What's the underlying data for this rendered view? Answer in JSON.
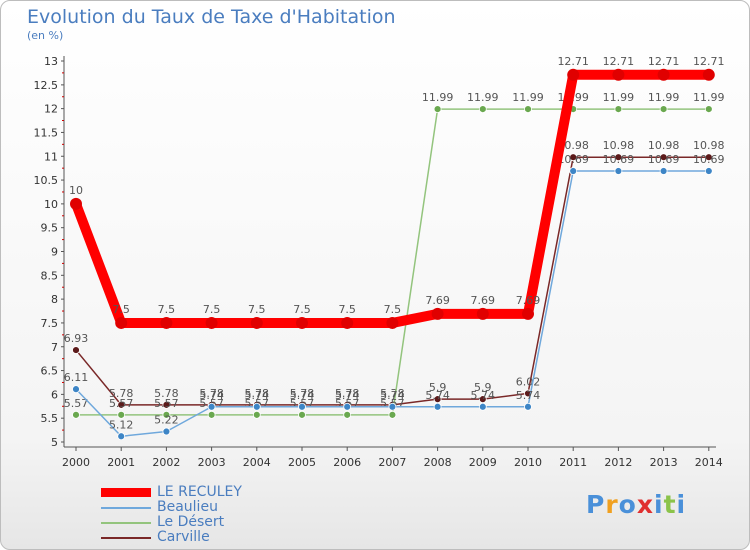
{
  "title": "Evolution du Taux de Taxe d'Habitation",
  "unit": "(en %)",
  "brand": {
    "letters": [
      "P",
      "r",
      "o",
      "x",
      "i",
      "t",
      "i"
    ],
    "colors": [
      "#4a90d9",
      "#f0a020",
      "#4a90d9",
      "#e03030",
      "#4a90d9",
      "#8bc34a",
      "#4a90d9"
    ]
  },
  "chart_data": {
    "type": "line",
    "x": [
      "2000",
      "2001",
      "2002",
      "2003",
      "2004",
      "2005",
      "2006",
      "2007",
      "2008",
      "2009",
      "2010",
      "2011",
      "2012",
      "2013",
      "2014"
    ],
    "ylim": [
      5,
      13
    ],
    "yticks": [
      "5",
      "5.5",
      "6",
      "6.5",
      "7",
      "7.5",
      "8",
      "8.5",
      "9",
      "9.5",
      "10",
      "10.5",
      "11",
      "11.5",
      "12",
      "12.5",
      "13"
    ],
    "grid": false,
    "legend_position": "bottom-left",
    "series": [
      {
        "name": "LE RECULEY",
        "color": "#ff0000",
        "marker": "#e00000",
        "values": [
          10,
          7.5,
          7.5,
          7.5,
          7.5,
          7.5,
          7.5,
          7.5,
          7.69,
          7.69,
          7.69,
          12.71,
          12.71,
          12.71,
          12.71
        ],
        "labels": [
          "10",
          "7.5",
          "7.5",
          "7.5",
          "7.5",
          "7.5",
          "7.5",
          "7.5",
          "7.69",
          "7.69",
          "7.69",
          "12.71",
          "12.71",
          "12.71",
          "12.71"
        ]
      },
      {
        "name": "Beaulieu",
        "color": "#6fa8dc",
        "marker": "#3d85c6",
        "values": [
          6.11,
          5.12,
          5.22,
          5.74,
          5.74,
          5.74,
          5.74,
          5.74,
          5.74,
          5.74,
          5.74,
          10.69,
          10.69,
          10.69,
          10.69
        ],
        "labels": [
          "6.11",
          "5.12",
          "5.22",
          "5.74",
          "5.74",
          "5.74",
          "5.74",
          "5.74",
          "5.74",
          "5.74",
          "5.74",
          "10.69",
          "10.69",
          "10.69",
          "10.69"
        ]
      },
      {
        "name": "Le Désert",
        "color": "#93c47d",
        "marker": "#6aa84f",
        "values": [
          5.57,
          5.57,
          5.57,
          5.57,
          5.57,
          5.57,
          5.57,
          5.57,
          11.99,
          11.99,
          11.99,
          11.99,
          11.99,
          11.99,
          11.99
        ],
        "labels": [
          "5.57",
          "5.57",
          "5.57",
          "5.57",
          "5.57",
          "5.57",
          "5.57",
          "5.57",
          "11.99",
          "11.99",
          "11.99",
          "11.99",
          "11.99",
          "11.99",
          "11.99"
        ]
      },
      {
        "name": "Carville",
        "color": "#7a2828",
        "marker": "#5c1a1a",
        "values": [
          6.93,
          5.78,
          5.78,
          5.78,
          5.78,
          5.78,
          5.78,
          5.78,
          5.9,
          5.9,
          6.02,
          10.98,
          10.98,
          10.98,
          10.98
        ],
        "labels": [
          "6.93",
          "5.78",
          "5.78",
          "5.78",
          "5.78",
          "5.78",
          "5.78",
          "5.78",
          "5.9",
          "5.9",
          "6.02",
          "10.98",
          "10.98",
          "10.98",
          "10.98"
        ]
      }
    ]
  }
}
